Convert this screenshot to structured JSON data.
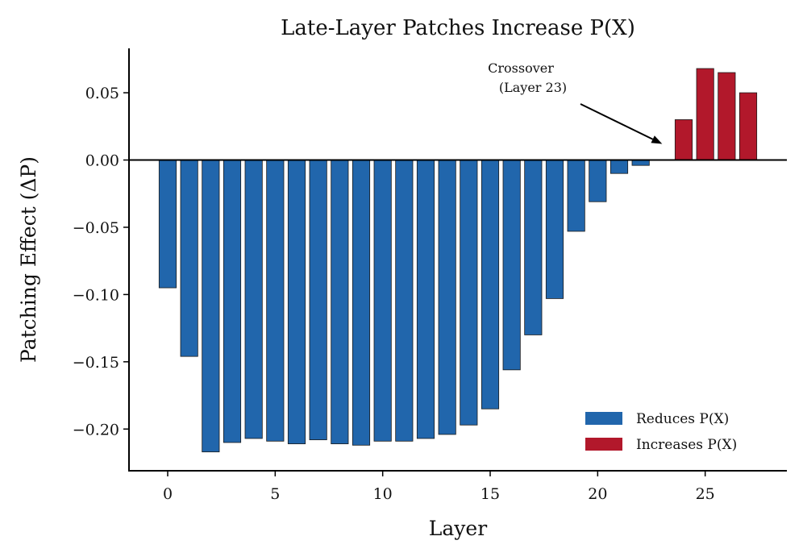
{
  "chart_data": {
    "type": "bar",
    "title": "Late-Layer Patches Increase P(X)",
    "xlabel": "Layer",
    "ylabel": "Patching Effect (ΔP)",
    "xlim": [
      -1.8,
      28.8
    ],
    "ylim": [
      -0.231,
      0.083
    ],
    "x_ticks": [
      0,
      5,
      10,
      15,
      20,
      25
    ],
    "x_tick_labels": [
      "0",
      "5",
      "10",
      "15",
      "20",
      "25"
    ],
    "y_ticks": [
      0.05,
      0.0,
      -0.05,
      -0.1,
      -0.15,
      -0.2
    ],
    "y_tick_labels": [
      "0.05",
      "0.00",
      "−0.05",
      "−0.10",
      "−0.15",
      "−0.20"
    ],
    "x": [
      0,
      1,
      2,
      3,
      4,
      5,
      6,
      7,
      8,
      9,
      10,
      11,
      12,
      13,
      14,
      15,
      16,
      17,
      18,
      19,
      20,
      21,
      22,
      23,
      24,
      25,
      26,
      27
    ],
    "values": [
      -0.095,
      -0.146,
      -0.217,
      -0.21,
      -0.207,
      -0.209,
      -0.211,
      -0.208,
      -0.211,
      -0.212,
      -0.209,
      -0.209,
      -0.207,
      -0.204,
      -0.197,
      -0.185,
      -0.156,
      -0.13,
      -0.103,
      -0.053,
      -0.031,
      -0.01,
      -0.004,
      0.0,
      0.03,
      0.068,
      0.065,
      0.05
    ],
    "colors": {
      "negative": "#2166ac",
      "positive": "#b2182b",
      "edge": "#1a1a1a"
    },
    "legend": {
      "placement": "lower-right",
      "items": [
        {
          "label": "Reduces P(X)",
          "color": "#2166ac"
        },
        {
          "label": "Increases P(X)",
          "color": "#b2182b"
        }
      ]
    },
    "annotation": {
      "line1": "Crossover",
      "line2": "(Layer 23)",
      "target_x": 23.0,
      "target_y": 0.012
    },
    "grid": false
  }
}
